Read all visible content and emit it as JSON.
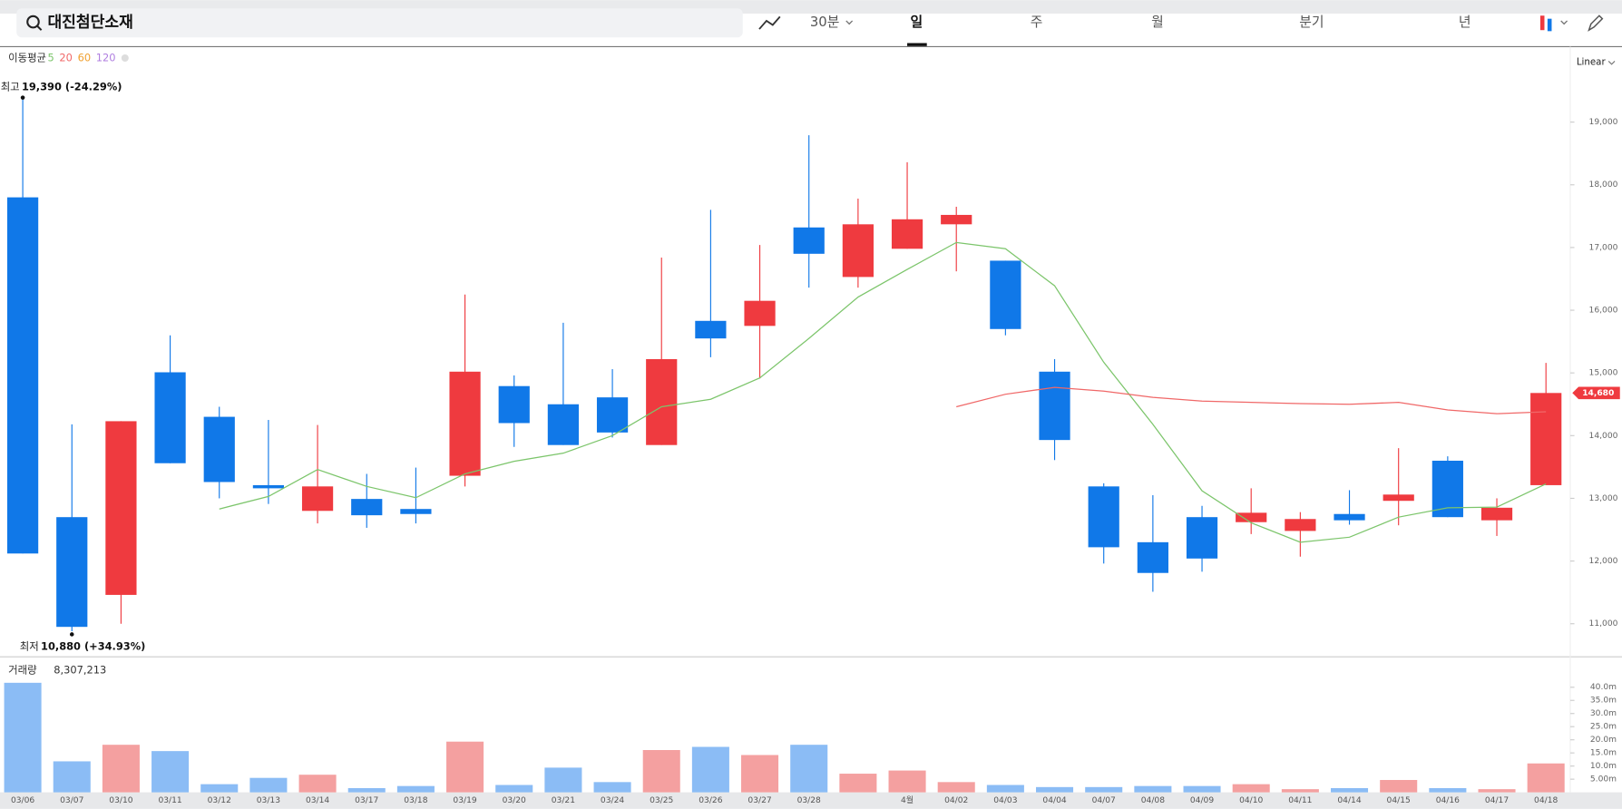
{
  "toolbar": {
    "search": "대진첨단소재",
    "interval": "30분",
    "tabs": [
      "일",
      "주",
      "월",
      "분기",
      "년"
    ]
  },
  "chart_data": [
    {
      "type": "candlestick",
      "scale": "Linear",
      "log_scale": false,
      "legend_title": "이동평균",
      "up_color": "#ef3a3f",
      "down_color": "#1078e8",
      "open": [
        17800,
        12700,
        11460,
        15010,
        14300,
        13210,
        12800,
        12990,
        12830,
        13360,
        14790,
        14500,
        14610,
        13850,
        15830,
        15750,
        17320,
        16530,
        16980,
        17370,
        16790,
        15020,
        13190,
        12300,
        12700,
        12620,
        12480,
        12750,
        12960,
        13600,
        12650,
        13210
      ],
      "high": [
        19390,
        14180,
        14230,
        15600,
        14460,
        14250,
        14170,
        13390,
        13490,
        16250,
        14960,
        15800,
        15060,
        16840,
        17600,
        17040,
        18790,
        17780,
        18360,
        17650,
        16790,
        15220,
        13240,
        13050,
        12880,
        13160,
        12780,
        13130,
        13800,
        13670,
        13000,
        15160
      ],
      "low": [
        12120,
        10880,
        11000,
        13560,
        13000,
        12910,
        12600,
        12530,
        12600,
        13190,
        13820,
        13850,
        13970,
        13850,
        15250,
        14910,
        16360,
        16360,
        16980,
        16620,
        15600,
        13610,
        11960,
        11510,
        11830,
        12430,
        12070,
        12580,
        12570,
        12700,
        12400,
        13210
      ],
      "close": [
        12120,
        10950,
        14230,
        13560,
        13260,
        13160,
        13190,
        12730,
        12750,
        15020,
        14200,
        13850,
        14050,
        15220,
        15550,
        16150,
        16900,
        17370,
        17450,
        17520,
        15700,
        13930,
        12220,
        11810,
        12040,
        12770,
        12670,
        12650,
        13060,
        12700,
        12850,
        14680
      ],
      "series": [
        {
          "name": "5",
          "color": "#7cc56b",
          "values": [
            null,
            null,
            null,
            null,
            12830,
            13030,
            13460,
            13190,
            13010,
            13390,
            13590,
            13720,
            14000,
            14460,
            14580,
            14920,
            15550,
            16210,
            16650,
            17080,
            16980,
            16390,
            15170,
            14180,
            13120,
            12610,
            12300,
            12380,
            12700,
            12850,
            12860,
            13230
          ]
        },
        {
          "name": "20",
          "color": "#f06868",
          "values": [
            null,
            null,
            null,
            null,
            null,
            null,
            null,
            null,
            null,
            null,
            null,
            null,
            null,
            null,
            null,
            null,
            null,
            null,
            null,
            14460,
            14660,
            14770,
            14710,
            14610,
            14550,
            14530,
            14510,
            14500,
            14530,
            14410,
            14350,
            14380
          ]
        },
        {
          "name": "60",
          "color": "#f0a030"
        },
        {
          "name": "120",
          "color": "#b07fe0"
        }
      ],
      "annotations": [
        {
          "label": "최고",
          "text": "19,390 (-24.29%)",
          "value": 19390
        },
        {
          "label": "최저",
          "text": "10,880 (+34.93%)",
          "value": 10880
        }
      ],
      "last_price": {
        "value": 14680,
        "label": "14,680"
      },
      "ylim": [
        10505,
        20170
      ],
      "yticks": [
        {
          "value": 11000,
          "label": "11,000"
        },
        {
          "value": 12000,
          "label": "12,000"
        },
        {
          "value": 13000,
          "label": "13,000"
        },
        {
          "value": 14000,
          "label": "14,000"
        },
        {
          "value": 15000,
          "label": "15,000"
        },
        {
          "value": 16000,
          "label": "16,000"
        },
        {
          "value": 17000,
          "label": "17,000"
        },
        {
          "value": 18000,
          "label": "18,000"
        },
        {
          "value": 19000,
          "label": "19,000"
        }
      ]
    },
    {
      "type": "bar",
      "title": "거래량",
      "subtitle": "8,307,213",
      "up_color": "#f4a0a0",
      "down_color": "#8bbcf5",
      "categories": [
        "03/06",
        "03/07",
        "03/10",
        "03/11",
        "03/12",
        "03/13",
        "03/14",
        "03/17",
        "03/18",
        "03/19",
        "03/20",
        "03/21",
        "03/24",
        "03/25",
        "03/26",
        "03/27",
        "03/28",
        null,
        "4월",
        "04/02",
        "04/03",
        "04/04",
        "04/07",
        "04/08",
        "04/09",
        "04/10",
        "04/11",
        "04/14",
        "04/15",
        "04/16",
        "04/17",
        "04/18"
      ],
      "values": [
        41.7,
        11.8,
        18.1,
        15.7,
        3.1,
        5.5,
        6.7,
        1.6,
        2.4,
        19.3,
        2.8,
        9.4,
        3.9,
        16.1,
        17.3,
        14.2,
        18.1,
        7.1,
        8.3,
        3.9,
        2.8,
        2.0,
        2.0,
        2.4,
        2.4,
        3.1,
        1.2,
        1.6,
        4.7,
        1.6,
        1.2,
        11.0
      ],
      "ylim": [
        0,
        43.7
      ],
      "yticks": [
        {
          "value": 5,
          "label": "5.00m"
        },
        {
          "value": 10,
          "label": "10.0m"
        },
        {
          "value": 15,
          "label": "15.0m"
        },
        {
          "value": 20,
          "label": "20.0m"
        },
        {
          "value": 25,
          "label": "25.0m"
        },
        {
          "value": 30,
          "label": "30.0m"
        },
        {
          "value": 35,
          "label": "35.0m"
        },
        {
          "value": 40,
          "label": "40.0m"
        }
      ]
    }
  ]
}
